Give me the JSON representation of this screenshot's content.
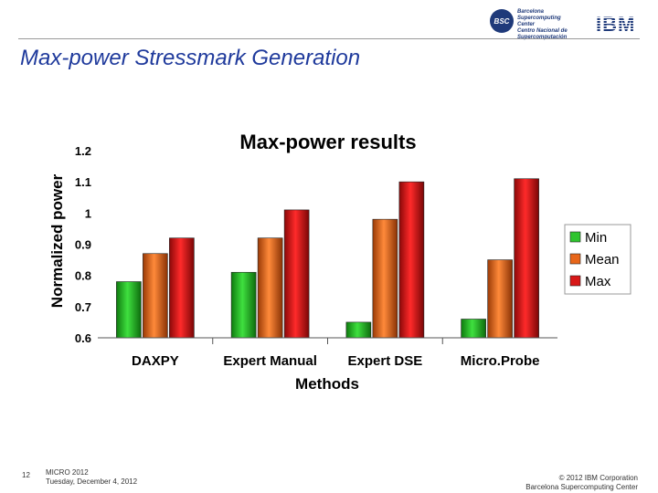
{
  "header": {
    "bsc_logo_text": "Barcelona\nSupercomputing\nCenter\nCentro Nacional de Supercomputación",
    "bsc_logo_abbr": "BSC",
    "ibm_logo_text": "IBM",
    "title": "Max-power Stressmark Generation"
  },
  "chart_data": {
    "type": "bar",
    "title": "Max-power results",
    "xlabel": "Methods",
    "ylabel": "Normalized power",
    "ylim": [
      0.6,
      1.2
    ],
    "yticks": [
      0.6,
      0.7,
      0.8,
      0.9,
      1,
      1.1,
      1.2
    ],
    "ytick_labels": [
      "0.6",
      "0.7",
      "0.8",
      "0.9",
      "1",
      "1.1",
      "1.2"
    ],
    "categories": [
      "DAXPY",
      "Expert Manual",
      "Expert DSE",
      "Micro.Probe"
    ],
    "series": [
      {
        "name": "Min",
        "values": [
          0.78,
          0.81,
          0.65,
          0.66
        ],
        "color": "#2ec42e"
      },
      {
        "name": "Mean",
        "values": [
          0.87,
          0.92,
          0.98,
          0.85
        ],
        "color": "#e8661a"
      },
      {
        "name": "Max",
        "values": [
          0.92,
          1.01,
          1.1,
          1.11
        ],
        "color": "#d81818"
      }
    ],
    "grid": false,
    "legend_position": "right"
  },
  "footer": {
    "page_number": "12",
    "event": "MICRO 2012",
    "date": "Tuesday, December 4, 2012",
    "copyright": "© 2012 IBM Corporation",
    "org": "Barcelona Supercomputing Center"
  }
}
